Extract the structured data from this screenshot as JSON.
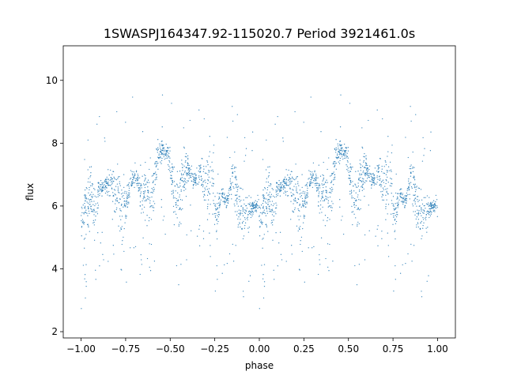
{
  "chart_data": {
    "type": "scatter",
    "title": "1SWASPJ164347.92-115020.7 Period 3921461.0s",
    "xlabel": "phase",
    "ylabel": "flux",
    "xlim": [
      -1.1,
      1.1
    ],
    "ylim": [
      1.8,
      11.1
    ],
    "x_ticks": [
      -1.0,
      -0.75,
      -0.5,
      -0.25,
      0.0,
      0.25,
      0.5,
      0.75,
      1.0
    ],
    "x_tick_labels": [
      "−1.00",
      "−0.75",
      "−0.50",
      "−0.25",
      "0.00",
      "0.25",
      "0.50",
      "0.75",
      "1.00"
    ],
    "y_ticks": [
      2,
      4,
      6,
      8,
      10
    ],
    "y_tick_labels": [
      "2",
      "4",
      "6",
      "8",
      "10"
    ],
    "grid": false,
    "series": [
      {
        "color": "#1f77b4",
        "profile": [
          [
            0.0,
            5.3
          ],
          [
            0.02,
            5.9
          ],
          [
            0.05,
            6.2
          ],
          [
            0.08,
            6.0
          ],
          [
            0.1,
            6.5
          ],
          [
            0.13,
            6.6
          ],
          [
            0.16,
            6.8
          ],
          [
            0.19,
            6.5
          ],
          [
            0.22,
            6.1
          ],
          [
            0.25,
            6.0
          ],
          [
            0.28,
            6.8
          ],
          [
            0.31,
            6.9
          ],
          [
            0.34,
            6.3
          ],
          [
            0.37,
            6.6
          ],
          [
            0.4,
            6.4
          ],
          [
            0.43,
            7.6
          ],
          [
            0.46,
            7.8
          ],
          [
            0.49,
            7.6
          ],
          [
            0.52,
            6.3
          ],
          [
            0.55,
            6.2
          ],
          [
            0.58,
            7.2
          ],
          [
            0.61,
            7.1
          ],
          [
            0.64,
            6.8
          ],
          [
            0.67,
            7.2
          ],
          [
            0.7,
            6.6
          ],
          [
            0.73,
            6.9
          ],
          [
            0.76,
            5.6
          ],
          [
            0.79,
            6.4
          ],
          [
            0.82,
            6.1
          ],
          [
            0.85,
            6.9
          ],
          [
            0.88,
            6.3
          ],
          [
            0.91,
            5.6
          ],
          [
            0.94,
            5.8
          ],
          [
            0.97,
            6.0
          ],
          [
            1.0,
            6.1
          ]
        ]
      }
    ]
  }
}
